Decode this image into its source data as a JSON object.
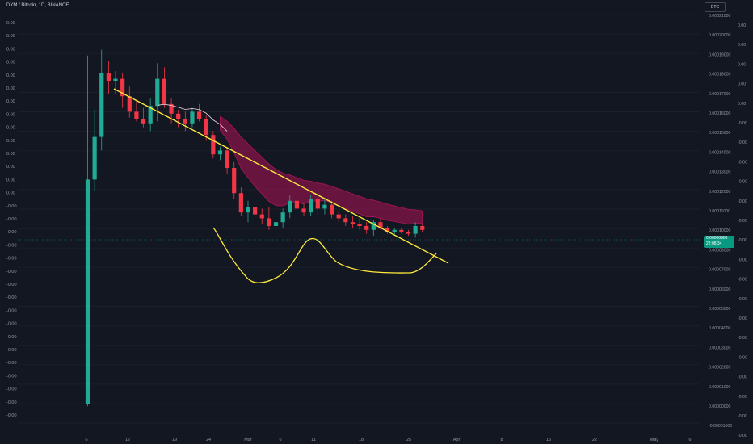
{
  "header": {
    "title": "DYM / Bitcoin, 1D, BINANCE",
    "currency": "BTC"
  },
  "last_price": {
    "value": "0.00008989",
    "countdown": "22:08:34"
  },
  "colors": {
    "up": "#22ab94",
    "down": "#f23645",
    "trend": "#ffeb3b",
    "cloud": "#ad1457",
    "mid": "#f0d7e0"
  },
  "chart_data": {
    "type": "candlestick",
    "title": "DYM / Bitcoin, 1D, BINANCE",
    "ylim": [
      -1e-05,
      0.00022
    ],
    "right_ticks": [
      "0.00021000",
      "0.00020000",
      "0.00019000",
      "0.00018000",
      "0.00017000",
      "0.00016000",
      "0.00015000",
      "0.00014000",
      "0.00013000",
      "0.00012000",
      "0.00011000",
      "0.00010000",
      "0.00008000",
      "0.00007000",
      "0.00006000",
      "0.00005000",
      "0.00004000",
      "0.00003000",
      "0.00002000",
      "0.00001000",
      "0.00000000",
      "-0.00001000"
    ],
    "right_ticks_minor": [
      "0.00",
      "0.00",
      "0.00",
      "0.00",
      "0.00",
      "-0.00",
      "-0.00",
      "-0.00",
      "-0.00",
      "-0.00",
      "-0.00",
      "-0.00",
      "-0.00",
      "-0.00",
      "-0.00",
      "-0.00",
      "-0.00",
      "-0.00",
      "-0.00",
      "-0.00",
      "-0.00",
      "-0.00"
    ],
    "left_ticks": [
      "0.00",
      "0.00",
      "0.00",
      "0.00",
      "0.00",
      "0.00",
      "0.00",
      "0.00",
      "0.00",
      "0.00",
      "0.00",
      "0.00",
      "0.00",
      "0.00",
      "-0.00",
      "-0.00",
      "-0.00",
      "-0.00",
      "-0.00",
      "-0.00",
      "-0.00",
      "-0.00",
      "-0.00",
      "-0.00",
      "-0.00",
      "-0.00",
      "-0.00",
      "-0.00",
      "-0.00",
      "-0.00",
      "-0.00"
    ],
    "x_ticks": [
      "6",
      "12",
      "19",
      "24",
      "Mar",
      "6",
      "11",
      "18",
      "25",
      "Apr",
      "8",
      "15",
      "22",
      "May",
      "6"
    ],
    "candles": [
      {
        "o": 0.0,
        "h": 0.00018,
        "l": -1e-06,
        "c": 0.000116
      },
      {
        "o": 0.000116,
        "h": 0.000152,
        "l": 0.00011,
        "c": 0.000138
      },
      {
        "o": 0.000138,
        "h": 0.000183,
        "l": 0.000131,
        "c": 0.000171
      },
      {
        "o": 0.000171,
        "h": 0.000177,
        "l": 0.00016,
        "c": 0.000167
      },
      {
        "o": 0.000167,
        "h": 0.000172,
        "l": 0.00016,
        "c": 0.000168
      },
      {
        "o": 0.000168,
        "h": 0.000171,
        "l": 0.000153,
        "c": 0.000159
      },
      {
        "o": 0.000159,
        "h": 0.000164,
        "l": 0.000148,
        "c": 0.000151
      },
      {
        "o": 0.000151,
        "h": 0.000157,
        "l": 0.000146,
        "c": 0.000147
      },
      {
        "o": 0.000147,
        "h": 0.000153,
        "l": 0.000143,
        "c": 0.000145
      },
      {
        "o": 0.000145,
        "h": 0.000158,
        "l": 0.000141,
        "c": 0.000154
      },
      {
        "o": 0.000154,
        "h": 0.000176,
        "l": 0.000146,
        "c": 0.000168
      },
      {
        "o": 0.000168,
        "h": 0.000174,
        "l": 0.000153,
        "c": 0.000155
      },
      {
        "o": 0.000155,
        "h": 0.000158,
        "l": 0.000145,
        "c": 0.00015
      },
      {
        "o": 0.00015,
        "h": 0.000152,
        "l": 0.000143,
        "c": 0.000147
      },
      {
        "o": 0.000147,
        "h": 0.000151,
        "l": 0.000141,
        "c": 0.000145
      },
      {
        "o": 0.000145,
        "h": 0.000153,
        "l": 0.000143,
        "c": 0.000151
      },
      {
        "o": 0.000151,
        "h": 0.000155,
        "l": 0.000146,
        "c": 0.000147
      },
      {
        "o": 0.000147,
        "h": 0.000149,
        "l": 0.000136,
        "c": 0.000139
      },
      {
        "o": 0.000139,
        "h": 0.000141,
        "l": 0.000127,
        "c": 0.000129
      },
      {
        "o": 0.000129,
        "h": 0.000133,
        "l": 0.000126,
        "c": 0.000131
      },
      {
        "o": 0.000131,
        "h": 0.000133,
        "l": 0.000119,
        "c": 0.000122
      },
      {
        "o": 0.000122,
        "h": 0.000125,
        "l": 0.000106,
        "c": 0.000109
      },
      {
        "o": 0.000109,
        "h": 0.000112,
        "l": 9.7e-05,
        "c": 9.9e-05
      },
      {
        "o": 9.9e-05,
        "h": 0.000105,
        "l": 9.4e-05,
        "c": 0.000102
      },
      {
        "o": 0.000102,
        "h": 0.000104,
        "l": 9.6e-05,
        "c": 9.8e-05
      },
      {
        "o": 9.8e-05,
        "h": 0.000101,
        "l": 9.3e-05,
        "c": 9.6e-05
      },
      {
        "o": 9.6e-05,
        "h": 0.000102,
        "l": 9e-05,
        "c": 9.2e-05
      },
      {
        "o": 9.2e-05,
        "h": 9.5e-05,
        "l": 8.8e-05,
        "c": 9.4e-05
      },
      {
        "o": 9.4e-05,
        "h": 0.000101,
        "l": 9.1e-05,
        "c": 9.9e-05
      },
      {
        "o": 9.9e-05,
        "h": 0.000108,
        "l": 9.6e-05,
        "c": 0.000105
      },
      {
        "o": 0.000105,
        "h": 0.000108,
        "l": 9.9e-05,
        "c": 0.000101
      },
      {
        "o": 0.000101,
        "h": 0.000104,
        "l": 9.7e-05,
        "c": 9.9e-05
      },
      {
        "o": 9.9e-05,
        "h": 0.000108,
        "l": 9.7e-05,
        "c": 0.000106
      },
      {
        "o": 0.000106,
        "h": 0.000109,
        "l": 9.8e-05,
        "c": 0.000101
      },
      {
        "o": 0.000101,
        "h": 0.000106,
        "l": 9.8e-05,
        "c": 0.000103
      },
      {
        "o": 0.000103,
        "h": 0.000105,
        "l": 9.6e-05,
        "c": 9.8e-05
      },
      {
        "o": 9.8e-05,
        "h": 0.0001,
        "l": 9.4e-05,
        "c": 9.6e-05
      },
      {
        "o": 9.6e-05,
        "h": 9.8e-05,
        "l": 9.2e-05,
        "c": 9.4e-05
      },
      {
        "o": 9.4e-05,
        "h": 9.7e-05,
        "l": 9.1e-05,
        "c": 9.3e-05
      },
      {
        "o": 9.3e-05,
        "h": 9.6e-05,
        "l": 9e-05,
        "c": 9.2e-05
      },
      {
        "o": 9.2e-05,
        "h": 9.4e-05,
        "l": 8.8e-05,
        "c": 9e-05
      },
      {
        "o": 9e-05,
        "h": 9.5e-05,
        "l": 8.7e-05,
        "c": 9.4e-05
      },
      {
        "o": 9.4e-05,
        "h": 9.6e-05,
        "l": 9e-05,
        "c": 9.1e-05
      },
      {
        "o": 9.1e-05,
        "h": 9.2e-05,
        "l": 8.8e-05,
        "c": 8.9e-05
      },
      {
        "o": 8.9e-05,
        "h": 9.1e-05,
        "l": 8.7e-05,
        "c": 9e-05
      },
      {
        "o": 9e-05,
        "h": 9.1e-05,
        "l": 8.8e-05,
        "c": 8.9e-05
      },
      {
        "o": 8.9e-05,
        "h": 9e-05,
        "l": 8.7e-05,
        "c": 8.8e-05
      },
      {
        "o": 8.8e-05,
        "h": 9.4e-05,
        "l": 8.6e-05,
        "c": 9.2e-05
      },
      {
        "o": 9.2e-05,
        "h": 9.3e-05,
        "l": 8.9e-05,
        "c": 9e-05
      }
    ]
  }
}
